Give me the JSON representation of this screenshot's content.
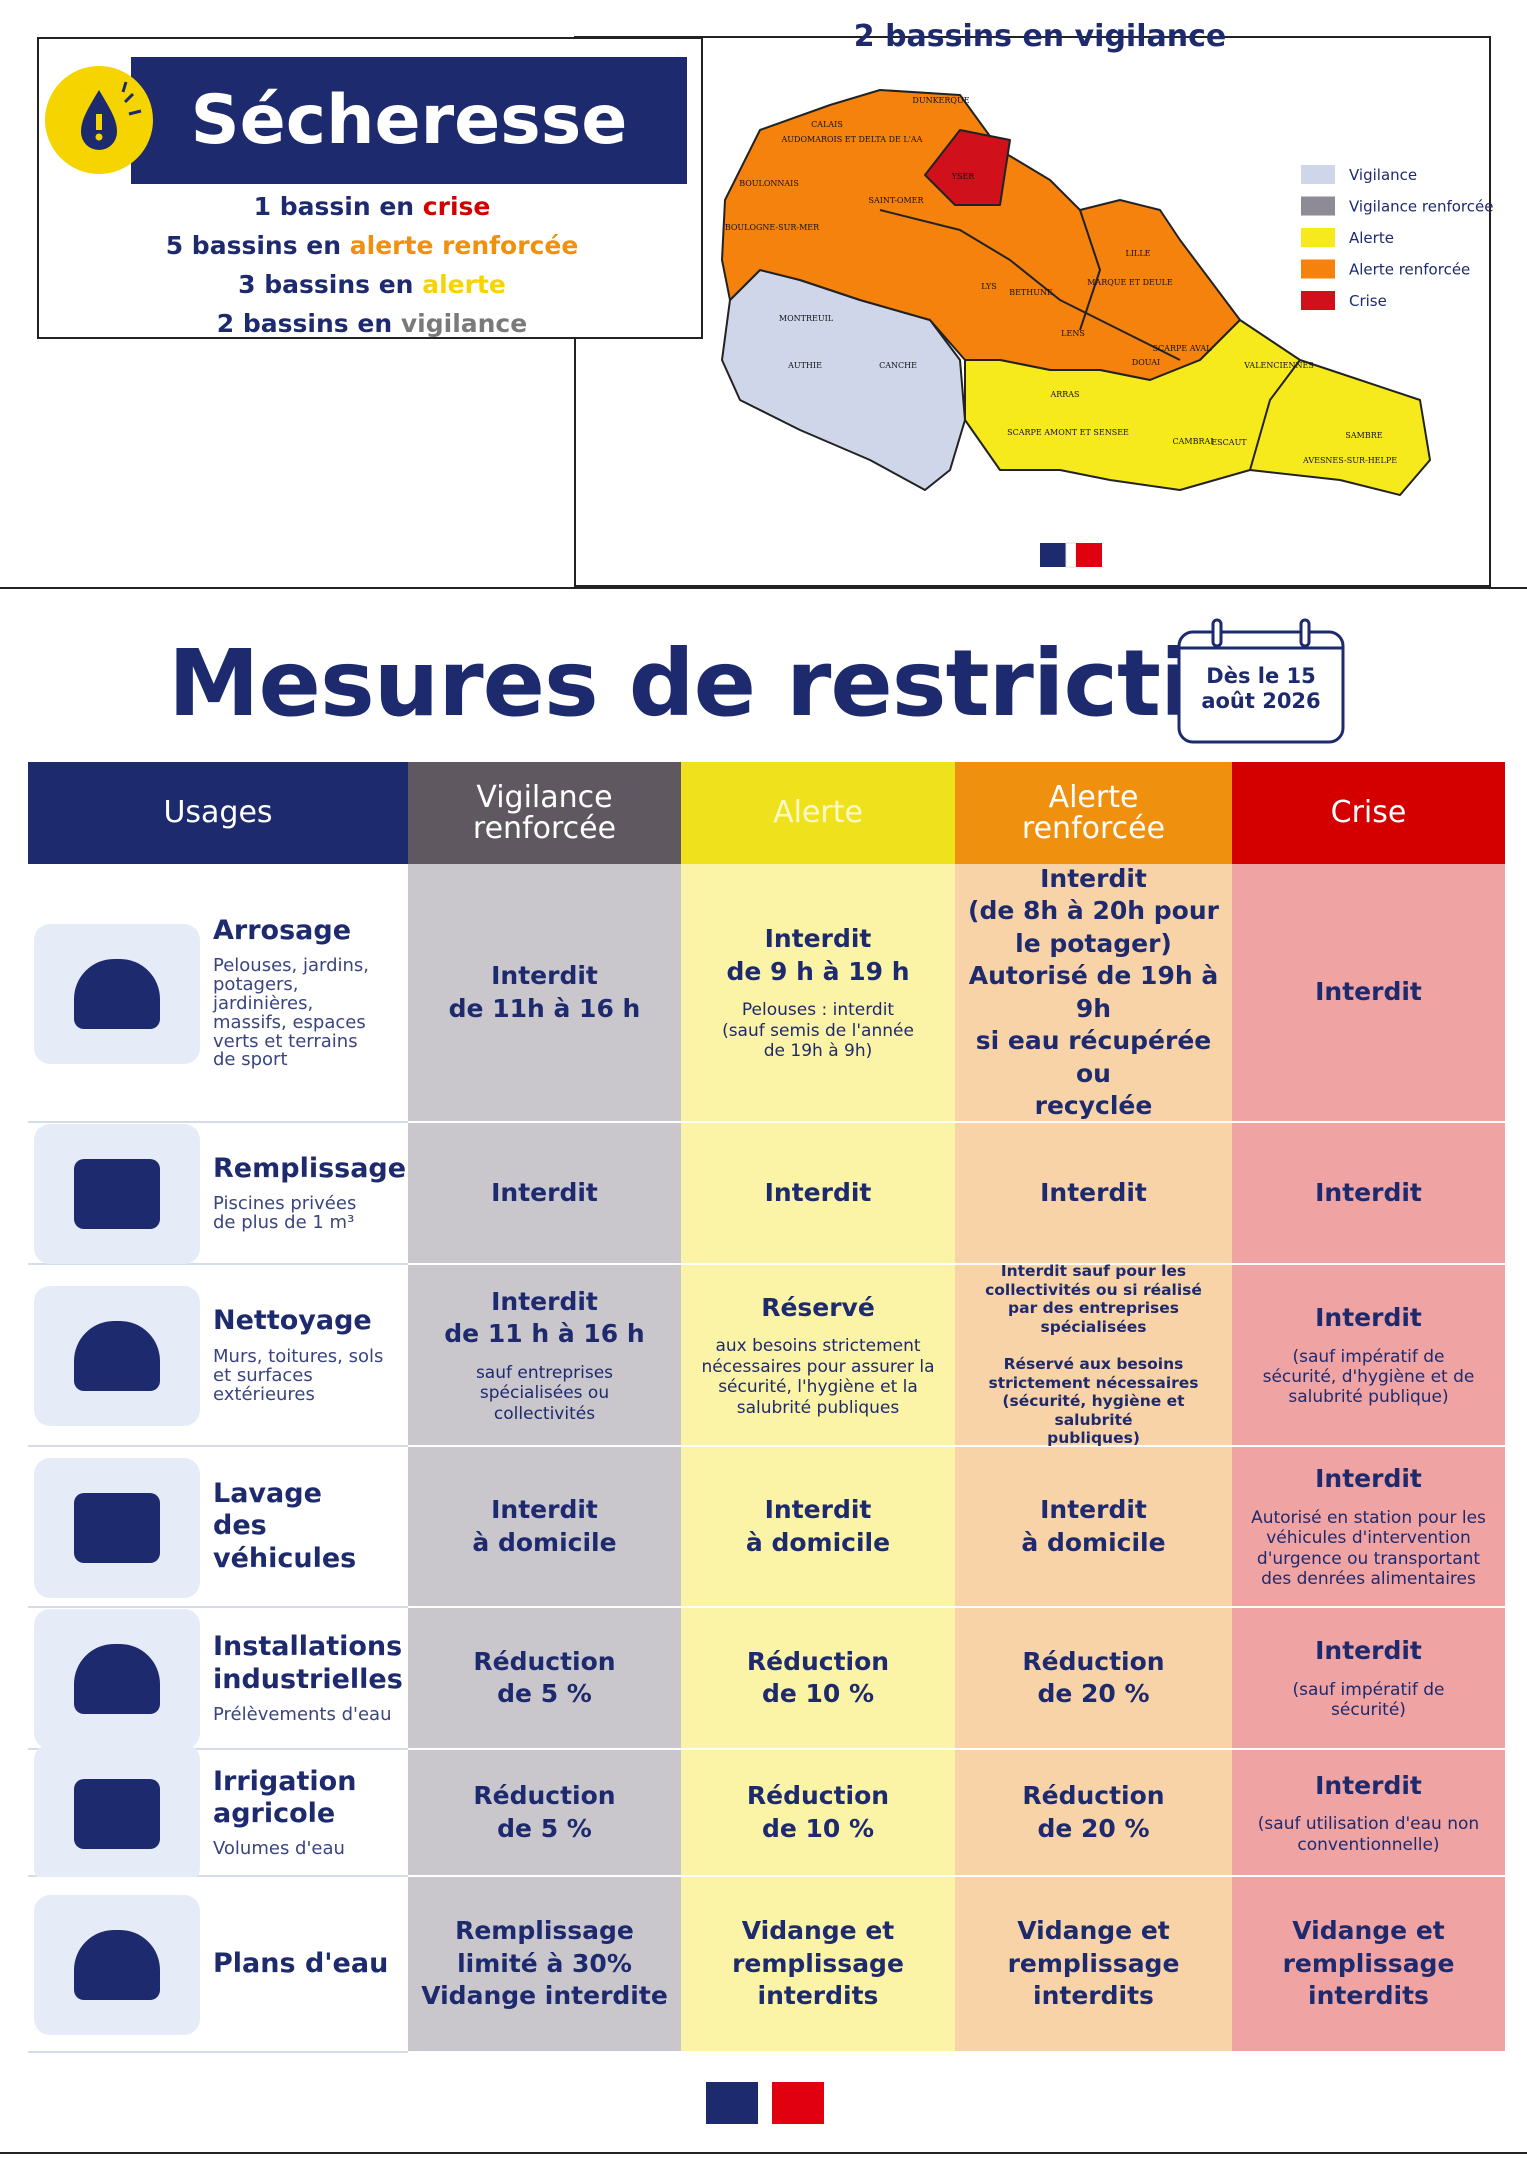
{
  "header": {
    "title": "Sécheresse",
    "lines": [
      {
        "count": "1 bassin en",
        "level": "crise",
        "color": "#d40000"
      },
      {
        "count": "5 bassins en",
        "level": "alerte renforcée",
        "color": "#f0900f"
      },
      {
        "count": "3 bassins en",
        "level": "alerte",
        "color": "#f5d400"
      },
      {
        "count": "2 bassins en",
        "level": "vigilance",
        "color": "#7a7a7a"
      }
    ]
  },
  "map": {
    "title": "2 bassins en vigilance",
    "legend": [
      {
        "label": "Vigilance",
        "color": "#cfd6ea"
      },
      {
        "label": "Vigilance renforcée",
        "color": "#8e8a96"
      },
      {
        "label": "Alerte",
        "color": "#f7ea1c"
      },
      {
        "label": "Alerte renforcée",
        "color": "#f5820c"
      },
      {
        "label": "Crise",
        "color": "#d0101a"
      }
    ],
    "places": [
      "DUNKERQUE",
      "CALAIS",
      "AUDOMAROIS ET DELTA DE L'AA",
      "BOULONNAIS",
      "YSER",
      "SAINT-OMER",
      "BOULOGNE-SUR-MER",
      "LILLE",
      "LYS",
      "BETHUNE",
      "MARQUE ET DEULE",
      "MONTREUIL",
      "LENS",
      "SCARPE AVAL",
      "AUTHIE",
      "CANCHE",
      "DOUAI",
      "VALENCIENNES",
      "ARRAS",
      "SCARPE AMONT ET SENSEE",
      "CAMBRAI",
      "ESCAUT",
      "SAMBRE",
      "AVESNES-SUR-HELPE"
    ]
  },
  "restrictions": {
    "title": "Mesures de restriction",
    "date": "Dès le 15\naoût 2026",
    "columns": [
      "Usages",
      "Vigilance\nrenforcée",
      "Alerte",
      "Alerte\nrenforcée",
      "Crise"
    ],
    "rows": [
      {
        "title": "Arrosage",
        "subtitle": "Pelouses, jardins,\npotagers,\njardinières,\nmassifs, espaces\nverts et terrains\nde sport",
        "cells": [
          {
            "main": "Interdit\nde 11h à 16 h"
          },
          {
            "main": "Interdit\nde 9 h à 19 h",
            "note": "Pelouses : interdit\n(sauf semis de l'année\nde 19h à 9h)"
          },
          {
            "main": "Interdit\n(de 8h à 20h pour\nle potager)\nAutorisé de 19h à 9h\nsi eau récupérée ou\nrecyclée"
          },
          {
            "main": "Interdit"
          }
        ]
      },
      {
        "title": "Remplissage",
        "subtitle": "Piscines privées\nde plus de 1 m³",
        "cells": [
          {
            "main": "Interdit"
          },
          {
            "main": "Interdit"
          },
          {
            "main": "Interdit"
          },
          {
            "main": "Interdit"
          }
        ]
      },
      {
        "title": "Nettoyage",
        "subtitle": "Murs, toitures, sols\net surfaces\nextérieures",
        "cells": [
          {
            "main": "Interdit\nde 11 h à 16 h",
            "note": "sauf entreprises\nspécialisées ou\ncollectivités"
          },
          {
            "main": "Réservé",
            "note": "aux besoins strictement\nnécessaires pour assurer la\nsécurité, l'hygiène et la\nsalubrité publiques"
          },
          {
            "fine": "Interdit sauf pour les\ncollectivités ou si réalisé\npar des entreprises\nspécialisées\n\nRéservé aux besoins\nstrictement nécessaires\n(sécurité, hygiène et salubrité\npubliques)"
          },
          {
            "main": "Interdit",
            "note": "(sauf impératif de\nsécurité, d'hygiène et de\nsalubrité publique)"
          }
        ]
      },
      {
        "title": "Lavage\ndes véhicules",
        "cells": [
          {
            "main": "Interdit\nà domicile"
          },
          {
            "main": "Interdit\nà domicile"
          },
          {
            "main": "Interdit\nà domicile"
          },
          {
            "main": "Interdit",
            "note": "Autorisé en station pour les\nvéhicules d'intervention\nd'urgence ou transportant\ndes denrées alimentaires"
          }
        ]
      },
      {
        "title": "Installations\nindustrielles",
        "subtitle": "Prélèvements d'eau",
        "cells": [
          {
            "main": "Réduction\nde 5 %"
          },
          {
            "main": "Réduction\nde 10 %"
          },
          {
            "main": "Réduction\nde 20 %"
          },
          {
            "main": "Interdit",
            "note": "(sauf impératif de\nsécurité)"
          }
        ]
      },
      {
        "title": "Irrigation\nagricole",
        "subtitle": "Volumes d'eau",
        "cells": [
          {
            "main": "Réduction\nde 5 %"
          },
          {
            "main": "Réduction\nde 10 %"
          },
          {
            "main": "Réduction\nde 20 %"
          },
          {
            "main": "Interdit",
            "note": "(sauf utilisation d'eau non\nconventionnelle)"
          }
        ]
      },
      {
        "title": "Plans d'eau",
        "cells": [
          {
            "main": "Remplissage\nlimité à 30%\nVidange interdite"
          },
          {
            "main": "Vidange et\nremplissage\ninterdits"
          },
          {
            "main": "Vidange et\nremplissage\ninterdits"
          },
          {
            "main": "Vidange et\nremplissage\ninterdits"
          }
        ]
      }
    ]
  }
}
